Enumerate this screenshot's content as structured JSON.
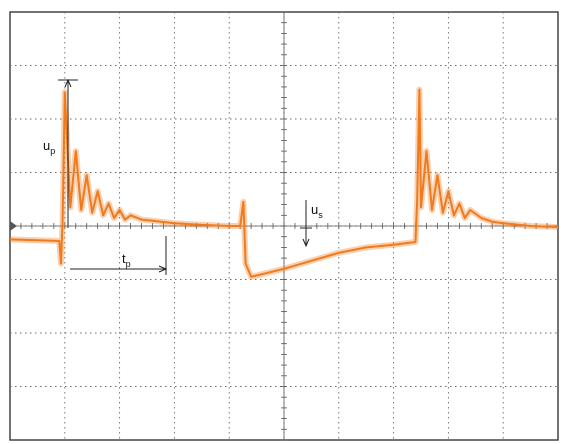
{
  "chart_data": {
    "type": "line",
    "title": "",
    "xlabel": "",
    "ylabel": "",
    "grid": true,
    "grid_divisions": {
      "x": 10,
      "y": 8
    },
    "xlim": [
      0,
      10
    ],
    "ylim": [
      -4,
      4
    ],
    "annotations": {
      "up": {
        "main": "u",
        "sub": "p"
      },
      "tp": {
        "main": "t",
        "sub": "p"
      },
      "us": {
        "main": "u",
        "sub": "s"
      }
    },
    "series": [
      {
        "color": "#f07a1e",
        "x": [
          0,
          0.9,
          0.93,
          0.96,
          1.0,
          1.1,
          1.2,
          1.3,
          1.4,
          1.5,
          1.6,
          1.7,
          1.8,
          1.9,
          2.0,
          2.1,
          2.2,
          2.4,
          2.6,
          3.0,
          3.5,
          4.0,
          4.2,
          4.26,
          4.3,
          4.4,
          4.6,
          5.0,
          5.5,
          6.0,
          6.5,
          7.0,
          7.4,
          7.43,
          7.47,
          7.5,
          7.6,
          7.7,
          7.8,
          7.9,
          8.0,
          8.1,
          8.2,
          8.3,
          8.4,
          8.6,
          8.8,
          9.0,
          9.5,
          10.0
        ],
        "y": [
          -0.25,
          -0.28,
          -0.7,
          0.1,
          2.5,
          0.35,
          1.4,
          0.3,
          0.95,
          0.25,
          0.65,
          0.2,
          0.42,
          0.15,
          0.3,
          0.12,
          0.2,
          0.12,
          0.1,
          0.05,
          0.02,
          0.0,
          0.0,
          0.45,
          -0.7,
          -0.95,
          -0.9,
          -0.8,
          -0.65,
          -0.5,
          -0.4,
          -0.35,
          -0.3,
          0.5,
          2.55,
          0.35,
          1.4,
          0.3,
          0.95,
          0.25,
          0.65,
          0.2,
          0.42,
          0.15,
          0.3,
          0.15,
          0.08,
          0.05,
          0.0,
          -0.02
        ]
      }
    ]
  }
}
